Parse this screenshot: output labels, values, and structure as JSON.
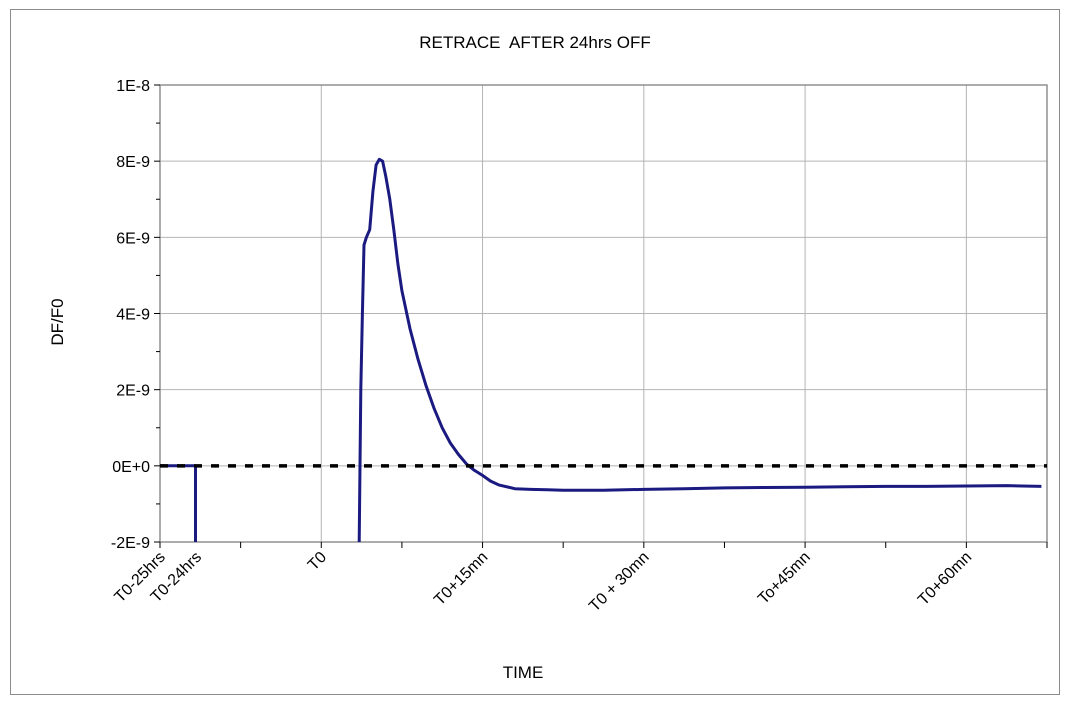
{
  "chart_data": {
    "type": "line",
    "title": "RETRACE  AFTER 24hrs OFF",
    "xlabel": "TIME",
    "ylabel": "DF/F0",
    "ylim": [
      -2e-09,
      1e-08
    ],
    "xlim": [
      0,
      11
    ],
    "y_ticks": [
      {
        "value": 1e-08,
        "label": "1E-8"
      },
      {
        "value": 8e-09,
        "label": "8E-9"
      },
      {
        "value": 6e-09,
        "label": "6E-9"
      },
      {
        "value": 4e-09,
        "label": "4E-9"
      },
      {
        "value": 2e-09,
        "label": "2E-9"
      },
      {
        "value": 0,
        "label": "0E+0"
      },
      {
        "value": -2e-09,
        "label": "-2E-9"
      }
    ],
    "x_ticks": [
      {
        "value": 0,
        "label": "T0-25hrs"
      },
      {
        "value": 0.45,
        "label": "T0-24hrs"
      },
      {
        "value": 2,
        "label": "T0"
      },
      {
        "value": 4,
        "label": "T0+15mn"
      },
      {
        "value": 6,
        "label": "T0 + 30mn"
      },
      {
        "value": 8,
        "label": "To+45mn"
      },
      {
        "value": 10,
        "label": "T0+60mn"
      }
    ],
    "grid": true,
    "series": [
      {
        "style": "solid",
        "color": "#1a1a80",
        "segments": [
          {
            "x": [
              0,
              0.15,
              0.3,
              0.43,
              0.44,
              0.44
            ],
            "y": [
              0,
              0,
              0,
              0,
              0,
              -2e-09
            ]
          },
          {
            "x": [
              2.47,
              2.49,
              2.51,
              2.53,
              2.56,
              2.6,
              2.64,
              2.68,
              2.72,
              2.76,
              2.8,
              2.85,
              2.9,
              2.95,
              3.0,
              3.1,
              3.2,
              3.3,
              3.4,
              3.5,
              3.6,
              3.7,
              3.8,
              3.9,
              4.0,
              4.1,
              4.2,
              4.4,
              4.6,
              4.8,
              5.0,
              5.5,
              6.0,
              6.5,
              7.0,
              7.5,
              8.0,
              8.5,
              9.0,
              9.5,
              10.0,
              10.5,
              10.93
            ],
            "y": [
              -2e-09,
              2e-09,
              4e-09,
              5.8e-09,
              6e-09,
              6.2e-09,
              7.2e-09,
              7.9e-09,
              8.05e-09,
              8e-09,
              7.6e-09,
              7e-09,
              6.2e-09,
              5.3e-09,
              4.6e-09,
              3.6e-09,
              2.8e-09,
              2.1e-09,
              1.5e-09,
              1e-09,
              6e-10,
              3e-10,
              5e-11,
              -1.2e-10,
              -2.5e-10,
              -4e-10,
              -5e-10,
              -6e-10,
              -6.2e-10,
              -6.3e-10,
              -6.4e-10,
              -6.4e-10,
              -6.2e-10,
              -6e-10,
              -5.8e-10,
              -5.7e-10,
              -5.6e-10,
              -5.5e-10,
              -5.4e-10,
              -5.4e-10,
              -5.3e-10,
              -5.2e-10,
              -5.4e-10
            ]
          }
        ]
      },
      {
        "style": "dashed",
        "color": "#000000",
        "x": [
          0,
          11
        ],
        "y": [
          0,
          0
        ]
      }
    ]
  }
}
